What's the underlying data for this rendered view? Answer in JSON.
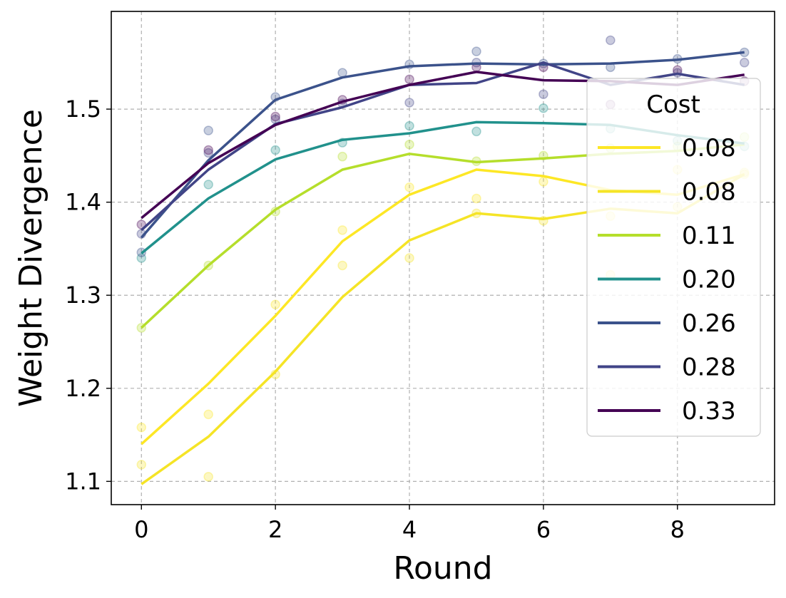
{
  "chart_data": {
    "type": "line",
    "title": "",
    "xlabel": "Round",
    "ylabel": "Weight Divergence",
    "xlim": [
      -0.45,
      9.45
    ],
    "ylim": [
      1.075,
      1.605
    ],
    "xticks": [
      0,
      2,
      4,
      6,
      8
    ],
    "xtick_labels": [
      "0",
      "2",
      "4",
      "6",
      "8"
    ],
    "yticks": [
      1.1,
      1.2,
      1.3,
      1.4,
      1.5
    ],
    "ytick_labels": [
      "1.1",
      "1.2",
      "1.3",
      "1.4",
      "1.5"
    ],
    "grid": true,
    "x": [
      0,
      1,
      2,
      3,
      4,
      5,
      6,
      7,
      8,
      9
    ],
    "legend": {
      "title": "Cost",
      "placement": "center-right"
    },
    "series": [
      {
        "name": "0.08",
        "color": "#fde725",
        "values": [
          1.14,
          1.205,
          1.278,
          1.358,
          1.408,
          1.435,
          1.428,
          1.413,
          1.408,
          1.43
        ],
        "points": [
          1.158,
          1.172,
          1.29,
          1.37,
          1.416,
          1.404,
          1.422,
          1.385,
          1.435,
          1.43
        ]
      },
      {
        "name": "0.08",
        "color": "#f5e426",
        "values": [
          1.097,
          1.148,
          1.218,
          1.298,
          1.359,
          1.388,
          1.382,
          1.393,
          1.388,
          1.43
        ],
        "points": [
          1.118,
          1.105,
          1.215,
          1.332,
          1.34,
          1.388,
          1.38,
          1.322,
          1.395,
          1.432
        ]
      },
      {
        "name": "0.11",
        "color": "#b5de2b",
        "values": [
          1.265,
          1.332,
          1.392,
          1.435,
          1.452,
          1.443,
          1.447,
          1.452,
          1.455,
          1.462
        ],
        "points": [
          1.265,
          1.332,
          1.39,
          1.449,
          1.462,
          1.444,
          1.45,
          1.458,
          1.46,
          1.47
        ]
      },
      {
        "name": "0.20",
        "color": "#21918c",
        "values": [
          1.345,
          1.404,
          1.446,
          1.467,
          1.474,
          1.486,
          1.485,
          1.483,
          1.472,
          1.463
        ],
        "points": [
          1.34,
          1.419,
          1.456,
          1.464,
          1.482,
          1.476,
          1.501,
          1.479,
          1.466,
          1.46
        ]
      },
      {
        "name": "0.26",
        "color": "#3b528b",
        "values": [
          1.362,
          1.445,
          1.51,
          1.534,
          1.546,
          1.549,
          1.548,
          1.549,
          1.553,
          1.561
        ],
        "points": [
          1.346,
          1.477,
          1.513,
          1.539,
          1.548,
          1.562,
          1.549,
          1.545,
          1.554,
          1.561
        ]
      },
      {
        "name": "0.28",
        "color": "#414487",
        "values": [
          1.37,
          1.435,
          1.484,
          1.502,
          1.526,
          1.528,
          1.55,
          1.526,
          1.538,
          1.526
        ],
        "points": [
          1.366,
          1.453,
          1.489,
          1.506,
          1.507,
          1.55,
          1.516,
          1.574,
          1.539,
          1.55
        ]
      },
      {
        "name": "0.33",
        "color": "#440154",
        "values": [
          1.383,
          1.442,
          1.483,
          1.508,
          1.526,
          1.54,
          1.531,
          1.53,
          1.526,
          1.537
        ],
        "points": [
          1.376,
          1.456,
          1.492,
          1.51,
          1.532,
          1.545,
          1.545,
          1.505,
          1.542,
          1.53
        ]
      }
    ]
  }
}
